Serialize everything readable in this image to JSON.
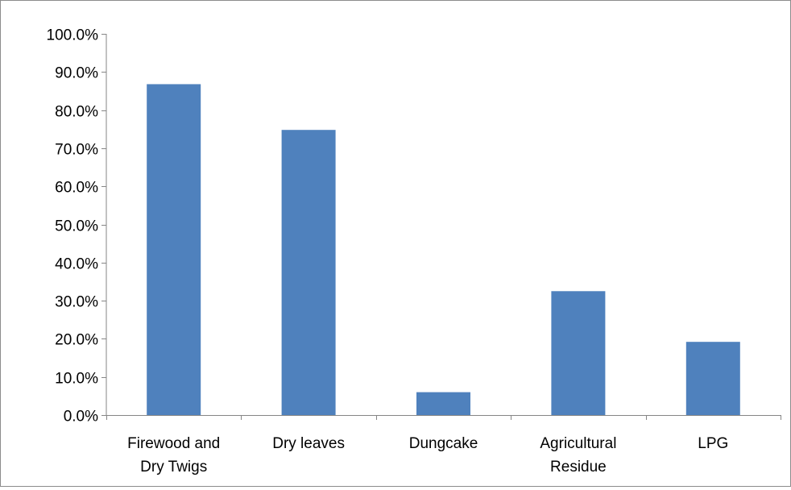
{
  "chart_data": {
    "type": "bar",
    "categories": [
      [
        "Firewood and",
        "Dry Twigs"
      ],
      [
        "Dry leaves"
      ],
      [
        "Dungcake"
      ],
      [
        "Agricultural",
        "Residue"
      ],
      [
        "LPG"
      ]
    ],
    "values": [
      86.8,
      74.8,
      6.0,
      32.5,
      19.2
    ],
    "ylim": [
      0,
      100
    ],
    "yticks": [
      0,
      10,
      20,
      30,
      40,
      50,
      60,
      70,
      80,
      90,
      100
    ],
    "ytick_labels": [
      "0.0%",
      "10.0%",
      "20.0%",
      "30.0%",
      "40.0%",
      "50.0%",
      "60.0%",
      "70.0%",
      "80.0%",
      "90.0%",
      "100.0%"
    ],
    "bar_color": "#4F81BD",
    "axis_color": "#868686",
    "grid": false,
    "legend": "none"
  }
}
